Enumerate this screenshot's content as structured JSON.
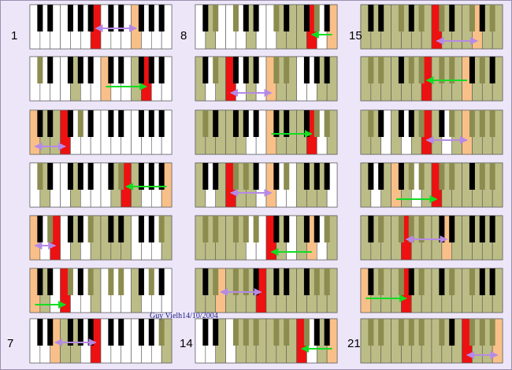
{
  "labels": [
    "1",
    "8",
    "15",
    "7",
    "14",
    "21"
  ],
  "credit": "Guy Vielh14/10/2004"
}
